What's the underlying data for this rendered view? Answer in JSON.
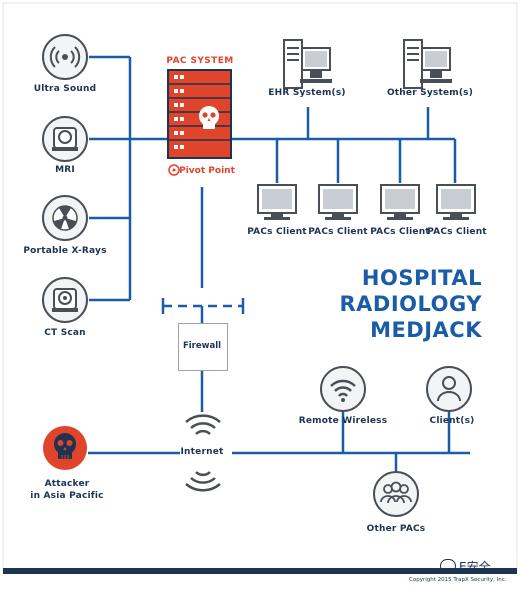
{
  "colors": {
    "line": "#1a5ca8",
    "navy": "#1c3352",
    "accent_red": "#e0442b",
    "device_gray": "#4a4f57",
    "light_gray": "#c9ced4"
  },
  "pac_system": {
    "title": "PAC SYSTEM",
    "pivot_label": "Pivot Point"
  },
  "modalities": [
    {
      "label": "Ultra Sound",
      "icon": "ultrasound-icon"
    },
    {
      "label": "MRI",
      "icon": "mri-icon"
    },
    {
      "label": "Portable X-Rays",
      "icon": "xray-radiation-icon"
    },
    {
      "label": "CT Scan",
      "icon": "ct-scan-icon"
    }
  ],
  "servers": [
    {
      "label": "EHR System(s)",
      "icon": "server-computer-icon"
    },
    {
      "label": "Other System(s)",
      "icon": "server-computer-icon"
    }
  ],
  "clients": [
    {
      "label": "PACs Client",
      "icon": "monitor-icon"
    },
    {
      "label": "PACs Client",
      "icon": "monitor-icon"
    },
    {
      "label": "PACs Client",
      "icon": "monitor-icon"
    },
    {
      "label": "PACs Client",
      "icon": "monitor-icon"
    }
  ],
  "headline": {
    "line1": "HOSPITAL",
    "line2": "RADIOLOGY",
    "line3": "MEDJACK"
  },
  "firewall": {
    "label": "Firewall"
  },
  "internet": {
    "label": "Internet",
    "icon": "wifi-broadcast-icon"
  },
  "attacker": {
    "line1": "Attacker",
    "line2": "in Asia Pacific",
    "icon": "skull-icon"
  },
  "remote": [
    {
      "label": "Remote Wireless",
      "icon": "wifi-icon"
    },
    {
      "label": "Client(s)",
      "icon": "user-icon"
    }
  ],
  "other_pacs": {
    "label": "Other PACs",
    "icon": "group-users-icon"
  },
  "watermark": {
    "text": "E安全"
  },
  "copyright": "Copyright 2015 TrapX Security, Inc."
}
